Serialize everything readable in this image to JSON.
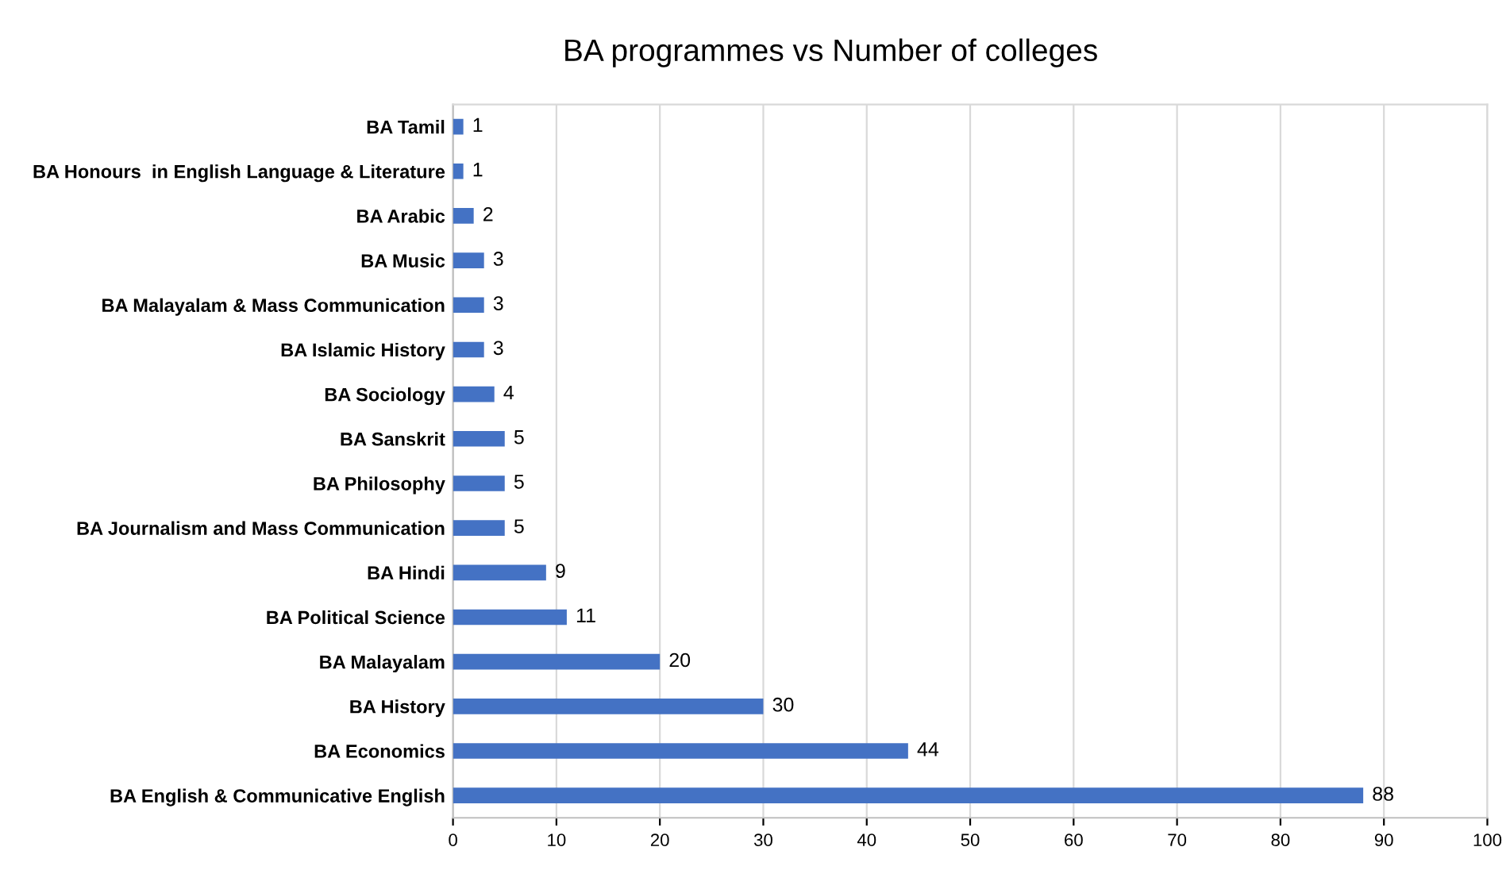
{
  "chart_data": {
    "type": "bar",
    "orientation": "horizontal",
    "title": "BA programmes vs Number of colleges",
    "categories": [
      "BA Tamil",
      "BA Honours  in English Language & Literature",
      "BA Arabic",
      "BA Music",
      "BA Malayalam & Mass Communication",
      "BA Islamic History",
      "BA Sociology",
      "BA Sanskrit",
      "BA Philosophy",
      "BA Journalism and Mass Communication",
      "BA Hindi",
      "BA Political Science",
      "BA Malayalam",
      "BA History",
      "BA Economics",
      "BA English & Communicative English"
    ],
    "values": [
      1,
      1,
      2,
      3,
      3,
      3,
      4,
      5,
      5,
      5,
      9,
      11,
      20,
      30,
      44,
      88
    ],
    "color": "#4472c4",
    "xlim": [
      0,
      100
    ],
    "xticks": [
      0,
      10,
      20,
      30,
      40,
      50,
      60,
      70,
      80,
      90,
      100
    ],
    "data_labels": true,
    "grid": "x",
    "legend": false
  }
}
